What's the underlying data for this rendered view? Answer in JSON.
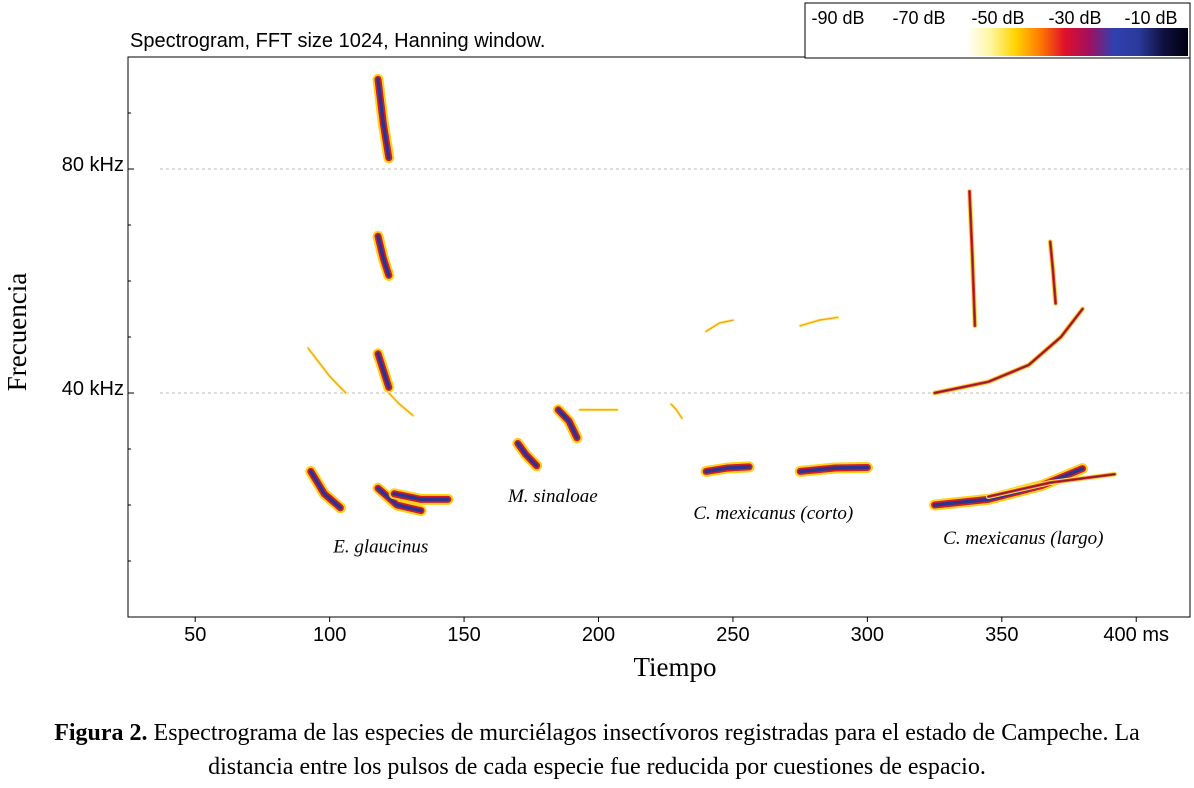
{
  "subtitle": "Spectrogram, FFT size 1024, Hanning window.",
  "colorbar": {
    "labels": [
      "-90 dB",
      "-70 dB",
      "-50 dB",
      "-30 dB",
      "-10 dB"
    ],
    "colors": [
      "#ffffff",
      "#fff6a0",
      "#ffd400",
      "#ff7a00",
      "#e0102a",
      "#a01060",
      "#3040b0",
      "#2a3a9a",
      "#101040",
      "#000010"
    ]
  },
  "caption": {
    "label": "Figura 2.",
    "text": " Espectrograma de las especies de murciélagos insectívoros registradas para el estado de Campeche. La distancia entre los pulsos de cada especie fue reducida por cuestiones de espacio."
  },
  "chart_data": {
    "type": "heatmap",
    "title": "Spectrogram, FFT size 1024, Hanning window.",
    "xlabel": "Tiempo",
    "ylabel": "Frecuencia",
    "xlim": [
      25,
      420
    ],
    "ylim": [
      0,
      100
    ],
    "x_ticks": [
      {
        "value": 50,
        "label": "50"
      },
      {
        "value": 100,
        "label": "100"
      },
      {
        "value": 150,
        "label": "150"
      },
      {
        "value": 200,
        "label": "200"
      },
      {
        "value": 250,
        "label": "250"
      },
      {
        "value": 300,
        "label": "300"
      },
      {
        "value": 350,
        "label": "350"
      },
      {
        "value": 400,
        "label": "400 ms"
      }
    ],
    "y_ticks": [
      {
        "value": 40,
        "label": "40 kHz"
      },
      {
        "value": 80,
        "label": "80 kHz"
      }
    ],
    "y_minor_ticks": [
      10,
      20,
      30,
      50,
      60,
      70,
      90
    ],
    "gridlines_y": [
      40,
      80
    ],
    "species_annotations": [
      {
        "label": "E. glaucinus",
        "x": 119,
        "y": 11.5
      },
      {
        "label": "M. sinaloae",
        "x": 183,
        "y": 20.5
      },
      {
        "label": "C. mexicanus (corto)",
        "x": 265,
        "y": 17.5
      },
      {
        "label": "C. mexicanus (largo)",
        "x": 358,
        "y": 13
      }
    ],
    "pulses": [
      {
        "species": "E. glaucinus",
        "points": [
          [
            93,
            26
          ],
          [
            98,
            22
          ],
          [
            104,
            19.5
          ]
        ],
        "intensity": "high"
      },
      {
        "species": "E. glaucinus",
        "points": [
          [
            118,
            96
          ],
          [
            120,
            88
          ],
          [
            122,
            82
          ]
        ],
        "intensity": "high"
      },
      {
        "species": "E. glaucinus",
        "points": [
          [
            118,
            68
          ],
          [
            120,
            64
          ],
          [
            122,
            61
          ]
        ],
        "intensity": "high"
      },
      {
        "species": "E. glaucinus",
        "points": [
          [
            118,
            47
          ],
          [
            120,
            44
          ],
          [
            122,
            41
          ]
        ],
        "intensity": "high"
      },
      {
        "species": "E. glaucinus",
        "points": [
          [
            118,
            23
          ],
          [
            125,
            20
          ],
          [
            134,
            19
          ]
        ],
        "intensity": "high"
      },
      {
        "species": "E. glaucinus",
        "points": [
          [
            124,
            22
          ],
          [
            134,
            21
          ],
          [
            144,
            21
          ]
        ],
        "intensity": "high"
      },
      {
        "species": "E. glaucinus",
        "points": [
          [
            92,
            48
          ],
          [
            100,
            43
          ],
          [
            106,
            40
          ]
        ],
        "intensity": "low"
      },
      {
        "species": "E. glaucinus",
        "points": [
          [
            122,
            40
          ],
          [
            126,
            38
          ],
          [
            131,
            36
          ]
        ],
        "intensity": "low"
      },
      {
        "species": "M. sinaloae",
        "points": [
          [
            170,
            31
          ],
          [
            173,
            29
          ],
          [
            177,
            27
          ]
        ],
        "intensity": "high"
      },
      {
        "species": "M. sinaloae",
        "points": [
          [
            185,
            37
          ],
          [
            189,
            35
          ],
          [
            192,
            32
          ]
        ],
        "intensity": "high"
      },
      {
        "species": "M. sinaloae",
        "points": [
          [
            193,
            37
          ],
          [
            200,
            37
          ],
          [
            207,
            37
          ]
        ],
        "intensity": "low"
      },
      {
        "species": "M. sinaloae",
        "points": [
          [
            227,
            38
          ],
          [
            229,
            37
          ],
          [
            231,
            35.5
          ]
        ],
        "intensity": "low"
      },
      {
        "species": "C. mexicanus (corto)",
        "points": [
          [
            240,
            26
          ],
          [
            248,
            26.6
          ],
          [
            256,
            26.8
          ]
        ],
        "intensity": "high"
      },
      {
        "species": "C. mexicanus (corto)",
        "points": [
          [
            275,
            26
          ],
          [
            288,
            26.6
          ],
          [
            300,
            26.7
          ]
        ],
        "intensity": "high"
      },
      {
        "species": "C. mexicanus (corto)",
        "points": [
          [
            240,
            51
          ],
          [
            245,
            52.5
          ],
          [
            250,
            53
          ]
        ],
        "intensity": "low"
      },
      {
        "species": "C. mexicanus (corto)",
        "points": [
          [
            275,
            52
          ],
          [
            282,
            53
          ],
          [
            289,
            53.5
          ]
        ],
        "intensity": "low"
      },
      {
        "species": "C. mexicanus (largo)",
        "points": [
          [
            325,
            20
          ],
          [
            345,
            21
          ],
          [
            365,
            23.5
          ],
          [
            380,
            26.5
          ]
        ],
        "intensity": "high"
      },
      {
        "species": "C. mexicanus (largo)",
        "points": [
          [
            345,
            21.5
          ],
          [
            368,
            24
          ],
          [
            392,
            25.5
          ]
        ],
        "intensity": "medium"
      },
      {
        "species": "C. mexicanus (largo)",
        "points": [
          [
            325,
            40
          ],
          [
            345,
            42
          ],
          [
            360,
            45
          ],
          [
            372,
            50
          ],
          [
            380,
            55
          ]
        ],
        "intensity": "medium"
      },
      {
        "species": "C. mexicanus (largo)",
        "points": [
          [
            338,
            76
          ],
          [
            339,
            65
          ],
          [
            340,
            52
          ]
        ],
        "intensity": "medium"
      },
      {
        "species": "C. mexicanus (largo)",
        "points": [
          [
            368,
            67
          ],
          [
            369,
            62
          ],
          [
            370,
            56
          ]
        ],
        "intensity": "medium"
      }
    ]
  }
}
